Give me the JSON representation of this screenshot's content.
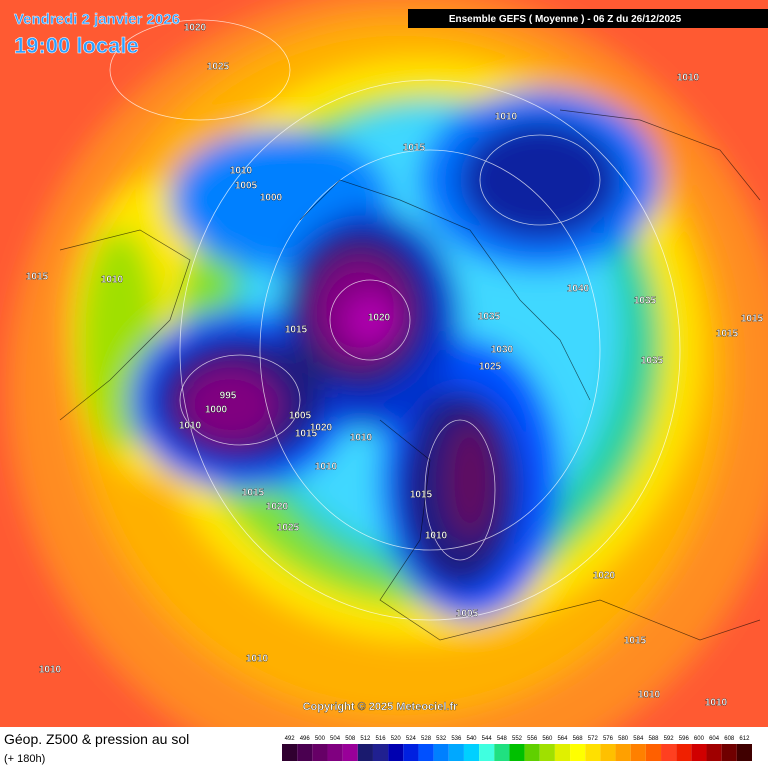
{
  "header": {
    "date": "Vendredi 2 janvier 2026",
    "time": "19:00 locale",
    "run": "Ensemble GEFS  ( Moyenne )  -  06 Z du 26/12/2025"
  },
  "isobar_labels": [
    "1020",
    "1025",
    "1010",
    "1010",
    "1015",
    "1010",
    "1005",
    "1000",
    "1015",
    "1010",
    "1040",
    "1035",
    "1035",
    "1020",
    "1015",
    "1015",
    "1015",
    "1030",
    "1035",
    "1025",
    "995",
    "1000",
    "1010",
    "1005",
    "1020",
    "1015",
    "1010",
    "1010",
    "1015",
    "1015",
    "1020",
    "1025",
    "1010",
    "1020",
    "1005",
    "1015",
    "1010",
    "1010",
    "1010",
    "1010"
  ],
  "copyright": "Copyright © 2025 Meteociel.fr",
  "footer": {
    "title": "Géop. Z500 & pression au sol",
    "range": "(+ 180h)"
  },
  "scale": {
    "values": [
      492,
      496,
      500,
      504,
      508,
      512,
      516,
      520,
      524,
      528,
      532,
      536,
      540,
      544,
      548,
      552,
      556,
      560,
      564,
      568,
      572,
      576,
      580,
      584,
      588,
      592,
      596,
      600,
      604,
      608,
      612
    ],
    "colors": [
      "#300030",
      "#4a0050",
      "#660066",
      "#800080",
      "#990099",
      "#1a1a6e",
      "#202090",
      "#0000b0",
      "#0020e0",
      "#0050ff",
      "#0080ff",
      "#00a8ff",
      "#00d0ff",
      "#40ffe0",
      "#20e080",
      "#00c000",
      "#60d000",
      "#a0e000",
      "#e0f000",
      "#ffff00",
      "#ffe000",
      "#ffc000",
      "#ffa000",
      "#ff8000",
      "#ff6000",
      "#ff4020",
      "#f02000",
      "#d00000",
      "#a00000",
      "#700000",
      "#400000"
    ]
  }
}
